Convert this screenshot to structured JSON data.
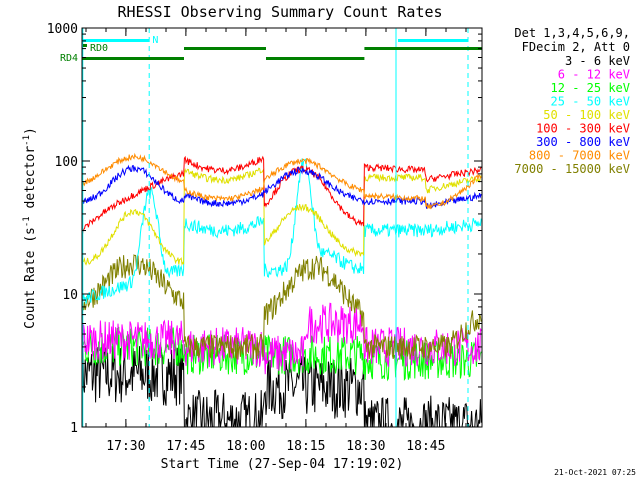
{
  "chart_data": {
    "type": "line",
    "title": "RHESSI Observing Summary Count Rates",
    "xlabel": "Start Time (27-Sep-04 17:19:02)",
    "ylabel_main": "Count Rate (s",
    "ylabel_sup1": "-1",
    "ylabel_mid": " detector",
    "ylabel_sup2": "-1",
    "ylabel_end": ")",
    "y_scale": "log",
    "ylim": [
      1,
      1000
    ],
    "xlim_minutes": [
      0,
      100
    ],
    "x_ticks": [
      {
        "label": "17:30",
        "min": 10.97
      },
      {
        "label": "17:45",
        "min": 25.97
      },
      {
        "label": "18:00",
        "min": 40.97
      },
      {
        "label": "18:15",
        "min": 55.97
      },
      {
        "label": "18:30",
        "min": 70.97
      },
      {
        "label": "18:45",
        "min": 85.97
      }
    ],
    "y_ticks": [
      {
        "label": "1",
        "value": 1
      },
      {
        "label": "10",
        "value": 10
      },
      {
        "label": "100",
        "value": 100
      },
      {
        "label": "1000",
        "value": 1000
      }
    ],
    "legend_header": [
      "Det 1,3,4,5,6,9,",
      "FDecim 2, Att 0"
    ],
    "legend_position": "right",
    "series": [
      {
        "name": "3 - 6 keV",
        "color": "#000000"
      },
      {
        "name": "6 - 12 keV",
        "color": "#ff00ff"
      },
      {
        "name": "12 - 25 keV",
        "color": "#00ff00"
      },
      {
        "name": "25 - 50 keV",
        "color": "#00ffff"
      },
      {
        "name": "50 - 100 keV",
        "color": "#e0e000"
      },
      {
        "name": "100 - 300 keV",
        "color": "#ff0000"
      },
      {
        "name": "300 - 800 keV",
        "color": "#0000ff"
      },
      {
        "name": "800 - 7000 keV",
        "color": "#ff8c00"
      },
      {
        "name": "7000 - 15000 keV",
        "color": "#808000"
      }
    ],
    "flags": {
      "N_label": "N",
      "RD0_label": "RD0",
      "RD4_label": "RD4",
      "N_color": "#00ffff",
      "flag_color": "#008000"
    },
    "timestamp": "21-Oct-2021 07:25"
  }
}
